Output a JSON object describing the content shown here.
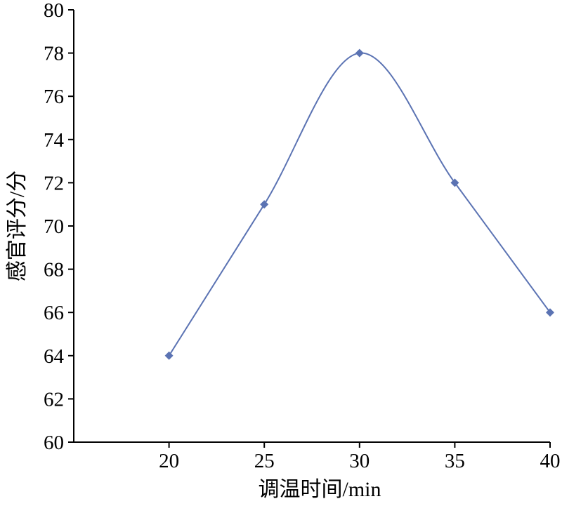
{
  "chart_data": {
    "type": "line",
    "smooth": true,
    "x": [
      20,
      25,
      30,
      35,
      40
    ],
    "series": [
      {
        "values": [
          64,
          71,
          78,
          72,
          66
        ],
        "color": "#5b73b3",
        "marker": "diamond"
      }
    ],
    "xlabel": "调温时间/min",
    "ylabel": "感官评分/分",
    "xlim": [
      15,
      40
    ],
    "ylim": [
      60,
      80
    ],
    "xticks": [
      20,
      25,
      30,
      35,
      40
    ],
    "yticks": [
      60,
      62,
      64,
      66,
      68,
      70,
      72,
      74,
      76,
      78,
      80
    ],
    "grid": false,
    "legend": "none"
  }
}
